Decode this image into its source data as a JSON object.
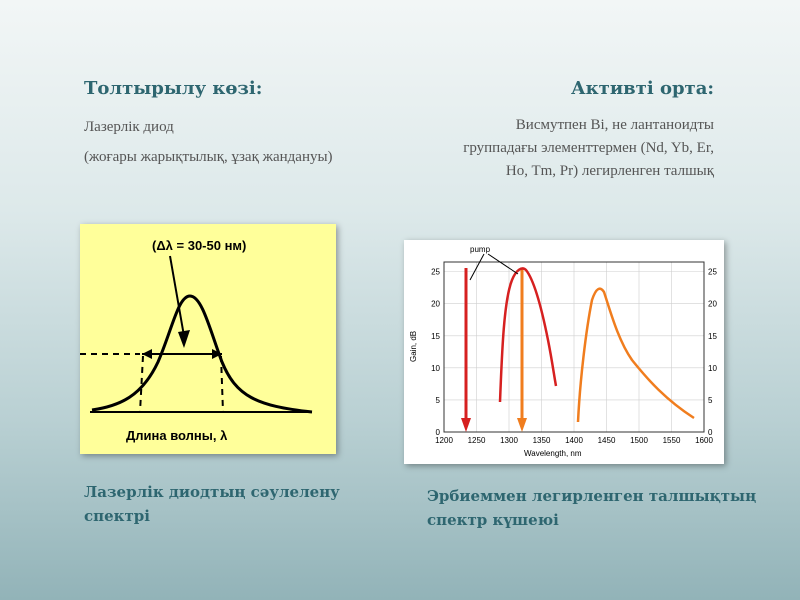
{
  "left": {
    "title": "Толтырылу көзі:",
    "line1": "Лазерлік диод",
    "line2": "(жоғары жарықтылық, ұзақ жандануы)",
    "caption": "Лазерлік диодтың сәулелену спектрі"
  },
  "right": {
    "title": "Активті орта:",
    "body": "Висмутпен Bi, не лантаноидты группадағы элементтермен (Nd, Yb, Er, Ho, Tm, Pr) легирленген талшық",
    "caption": "Эрбиеммен легирленген талшықтың спектр күшеюі"
  },
  "figure_left": {
    "annotation": "(Δλ = 30-50 нм)",
    "xlabel": "Длина волны, λ"
  },
  "figure_right": {
    "pump_label": "pump",
    "xlabel": "Wavelength, nm",
    "ylabel": "Gain, dB",
    "xticks": [
      "1200",
      "1250",
      "1300",
      "1350",
      "1400",
      "1450",
      "1500",
      "1550",
      "1600"
    ],
    "yticks": [
      "0",
      "5",
      "10",
      "15",
      "20",
      "25"
    ]
  },
  "colors": {
    "heading": "#2e6670",
    "body": "#555555",
    "pump_red": "#d62020",
    "pump_orange": "#f07d1e",
    "laser_bg": "#ffff9a"
  }
}
